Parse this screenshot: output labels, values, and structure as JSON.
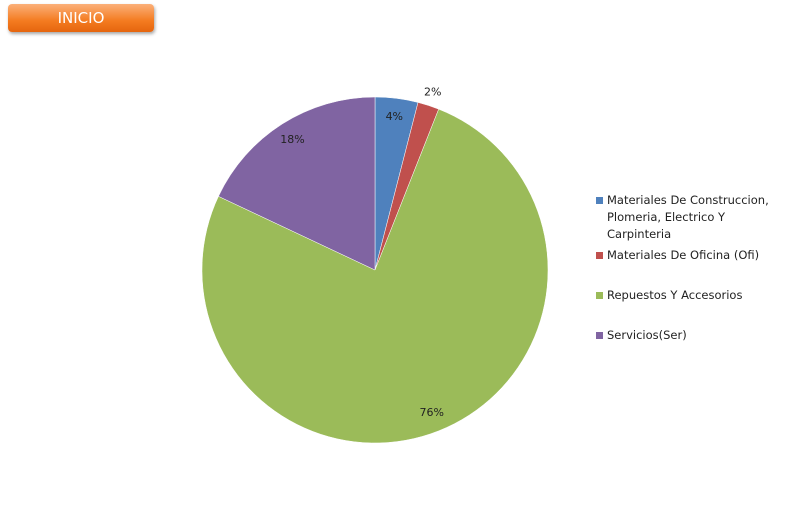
{
  "nav_button": "INICIO",
  "chart_data": {
    "type": "pie",
    "categories": [
      "Materiales De Construccion, Plomeria, Electrico Y Carpinteria",
      "Materiales De Oficina (Ofi)",
      "Repuestos Y Accesorios",
      "Servicios(Ser)"
    ],
    "values": [
      4,
      2,
      76,
      18
    ],
    "value_labels": [
      "4%",
      "2%",
      "76%",
      "18%"
    ],
    "colors": [
      "#4f81bd",
      "#c0504d",
      "#9bbb59",
      "#8064a2"
    ],
    "legend": "right"
  }
}
